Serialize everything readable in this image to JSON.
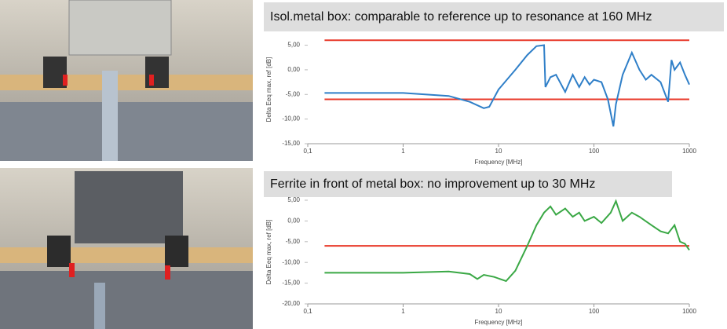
{
  "chart_data": [
    {
      "type": "line",
      "title": "Isol.metal box: comparable to reference up to resonance at 160 MHz",
      "xlabel": "Frequency [MHz]",
      "ylabel": "Delta Eeq max, ref [dB]",
      "xscale": "log",
      "xlim": [
        0.1,
        1000
      ],
      "xticks": [
        {
          "value": 0.1,
          "label": "0,1"
        },
        1,
        10,
        100,
        1000
      ],
      "ylim": [
        -15,
        7
      ],
      "yticks": [
        {
          "value": 5,
          "label": "5,00"
        },
        {
          "value": 0,
          "label": "0,00"
        },
        {
          "value": -5,
          "label": "-5,00"
        },
        {
          "value": -10,
          "label": "-10,00"
        },
        {
          "value": -15,
          "label": "-15,00"
        }
      ],
      "series": [
        {
          "color": "#e8392a",
          "x": [
            0.15,
            1000
          ],
          "values": [
            6,
            6
          ]
        },
        {
          "color": "#e8392a",
          "x": [
            0.15,
            1000
          ],
          "values": [
            -6,
            -6
          ]
        },
        {
          "color": "#2f7fc8",
          "x": [
            0.15,
            1,
            3,
            5,
            7,
            8,
            10,
            15,
            20,
            25,
            30,
            31,
            35,
            40,
            50,
            60,
            70,
            80,
            90,
            100,
            120,
            140,
            160,
            170,
            200,
            250,
            300,
            350,
            400,
            500,
            600,
            650,
            700,
            800,
            900,
            1000
          ],
          "values": [
            -4.7,
            -4.7,
            -5.3,
            -6.5,
            -7.8,
            -7.5,
            -4,
            0,
            3,
            4.8,
            5,
            -3.5,
            -1.5,
            -1,
            -4.5,
            -1,
            -3.5,
            -1.5,
            -3,
            -2,
            -2.5,
            -6,
            -11.5,
            -7,
            -1,
            3.5,
            0,
            -2,
            -1,
            -2.5,
            -6.5,
            2,
            0,
            1.5,
            -1,
            -3
          ]
        }
      ]
    },
    {
      "type": "line",
      "title": "Ferrite in front of metal box: no improvement up to 30 MHz",
      "xlabel": "Frequency [MHz]",
      "ylabel": "Delta Eeq max, ref [dB]",
      "xscale": "log",
      "xlim": [
        0.1,
        1000
      ],
      "xticks": [
        {
          "value": 0.1,
          "label": "0,1"
        },
        1,
        10,
        100,
        1000
      ],
      "ylim": [
        -20,
        5
      ],
      "yticks": [
        {
          "value": 5,
          "label": "5,00"
        },
        {
          "value": 0,
          "label": "0,00"
        },
        {
          "value": -5,
          "label": "-5,00"
        },
        {
          "value": -10,
          "label": "-10,00"
        },
        {
          "value": -15,
          "label": "-15,00"
        },
        {
          "value": -20,
          "label": "-20,00"
        }
      ],
      "series": [
        {
          "color": "#e8392a",
          "x": [
            0.15,
            1000
          ],
          "values": [
            -6,
            -6
          ]
        },
        {
          "color": "#3aa845",
          "x": [
            0.15,
            1,
            3,
            5,
            6,
            7,
            9,
            12,
            15,
            20,
            25,
            30,
            35,
            40,
            50,
            60,
            70,
            80,
            100,
            120,
            150,
            170,
            200,
            250,
            300,
            400,
            500,
            600,
            700,
            800,
            900,
            1000
          ],
          "values": [
            -12.5,
            -12.5,
            -12.2,
            -12.8,
            -14,
            -13,
            -13.5,
            -14.5,
            -12,
            -6,
            -1,
            2,
            3.5,
            1.5,
            3,
            1,
            2,
            0,
            1,
            -0.5,
            2,
            4.8,
            0,
            2,
            1,
            -1,
            -2.5,
            -3,
            -1,
            -5,
            -5.5,
            -7
          ]
        }
      ]
    }
  ]
}
